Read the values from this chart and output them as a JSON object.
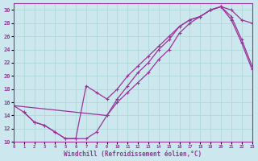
{
  "xlabel": "Windchill (Refroidissement éolien,°C)",
  "bg_color": "#cce8ee",
  "grid_color": "#aaddcc",
  "line_color": "#993399",
  "xlim": [
    0,
    23
  ],
  "ylim": [
    10,
    31
  ],
  "xticks": [
    0,
    1,
    2,
    3,
    4,
    5,
    6,
    7,
    8,
    9,
    10,
    11,
    12,
    13,
    14,
    15,
    16,
    17,
    18,
    19,
    20,
    21,
    22,
    23
  ],
  "yticks": [
    10,
    12,
    14,
    16,
    18,
    20,
    22,
    24,
    26,
    28,
    30
  ],
  "curve1_x": [
    0,
    1,
    2,
    3,
    4,
    5,
    6,
    7,
    8,
    9,
    10,
    11,
    12,
    13,
    14,
    15,
    16,
    17,
    18,
    19,
    20,
    21,
    22,
    23
  ],
  "curve1_y": [
    15.5,
    14.5,
    13.0,
    12.5,
    11.5,
    10.5,
    10.5,
    10.5,
    11.5,
    14.0,
    16.0,
    17.5,
    19.0,
    20.5,
    22.5,
    24.0,
    26.5,
    28.0,
    29.0,
    30.0,
    30.5,
    30.0,
    28.5,
    28.0
  ],
  "curve2_x": [
    0,
    9,
    10,
    11,
    12,
    13,
    14,
    15,
    16,
    17,
    18,
    19,
    20,
    21,
    22,
    23
  ],
  "curve2_y": [
    15.5,
    14.0,
    16.5,
    18.5,
    20.5,
    22.0,
    24.0,
    25.5,
    27.5,
    28.5,
    29.0,
    30.0,
    30.5,
    28.5,
    25.0,
    21.0
  ],
  "curve3_x": [
    1,
    2,
    3,
    4,
    5,
    6,
    7,
    8,
    9,
    10,
    11,
    12,
    13,
    14,
    15,
    16,
    17,
    18,
    19,
    20,
    20,
    21,
    22,
    23
  ],
  "curve3_y": [
    14.5,
    13.0,
    12.5,
    11.5,
    10.5,
    10.5,
    18.5,
    17.5,
    16.5,
    18.0,
    20.0,
    21.5,
    23.0,
    24.5,
    26.0,
    27.5,
    28.5,
    29.0,
    30.0,
    30.5,
    30.5,
    29.0,
    25.5,
    21.5
  ]
}
